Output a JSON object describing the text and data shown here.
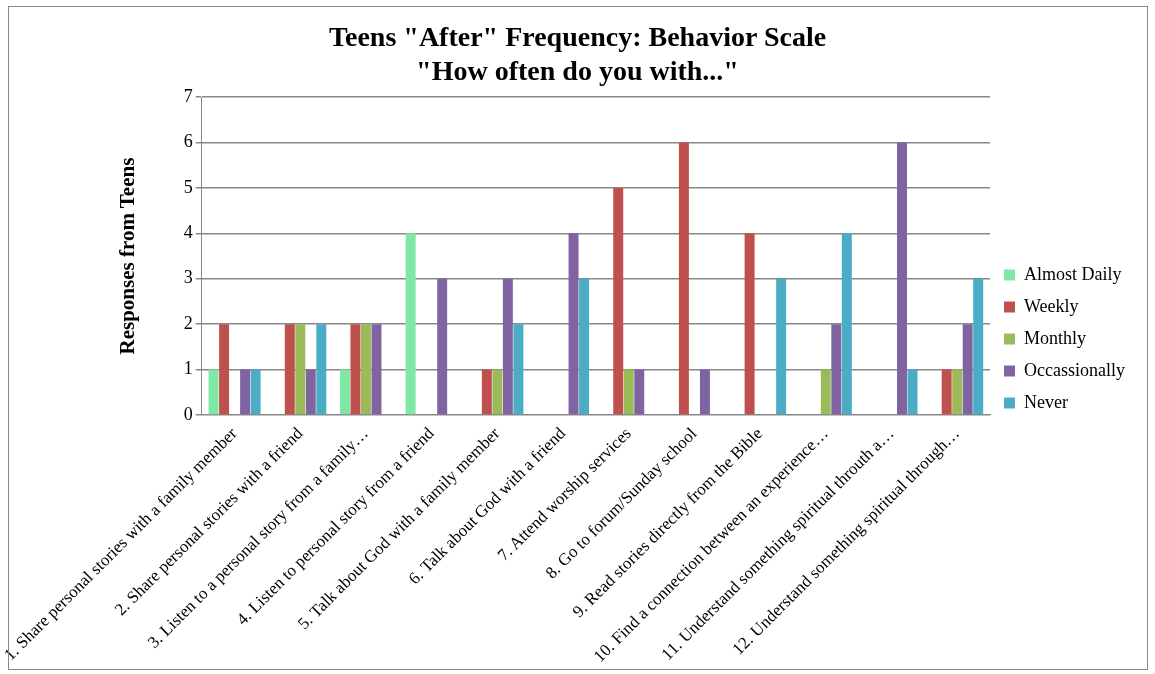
{
  "chart_data": {
    "type": "bar",
    "title": "Teens \"After\" Frequency: Behavior Scale",
    "subtitle": "\"How often do you with...\"",
    "ylabel": "Responses from Teens",
    "categories": [
      "1. Share personal stories with a family member",
      "2. Share personal stories with a friend",
      "3. Listen to a personal story from a family…",
      "4. Listen to personal story from a friend",
      "5. Talk about God with a family member",
      "6. Talk about God with a friend",
      "7. Attend worship services",
      "8. Go to forum/Sunday school",
      "9. Read stories directly from the Bible",
      "10. Find a connection between an experience…",
      "11. Understand something spiritual throuth a…",
      "12. Understand something spiritual through…"
    ],
    "series": [
      {
        "name": "Almost Daily",
        "color": "#7ee8a4",
        "values": [
          1,
          0,
          1,
          4,
          0,
          0,
          0,
          0,
          0,
          0,
          0,
          0
        ]
      },
      {
        "name": "Weekly",
        "color": "#c0504d",
        "values": [
          2,
          2,
          2,
          0,
          1,
          0,
          5,
          6,
          4,
          0,
          0,
          1
        ]
      },
      {
        "name": "Monthly",
        "color": "#9bbb59",
        "values": [
          0,
          2,
          2,
          0,
          1,
          0,
          1,
          0,
          0,
          1,
          0,
          1
        ]
      },
      {
        "name": "Occassionally",
        "color": "#8064a2",
        "values": [
          1,
          1,
          2,
          3,
          3,
          4,
          1,
          1,
          0,
          2,
          6,
          2
        ]
      },
      {
        "name": "Never",
        "color": "#4bacc6",
        "values": [
          1,
          2,
          0,
          0,
          2,
          3,
          0,
          0,
          3,
          4,
          1,
          3
        ]
      }
    ],
    "ylim": [
      0,
      7
    ],
    "yticks": [
      0,
      1,
      2,
      3,
      4,
      5,
      6,
      7
    ],
    "grid": "y",
    "legend": "right"
  }
}
